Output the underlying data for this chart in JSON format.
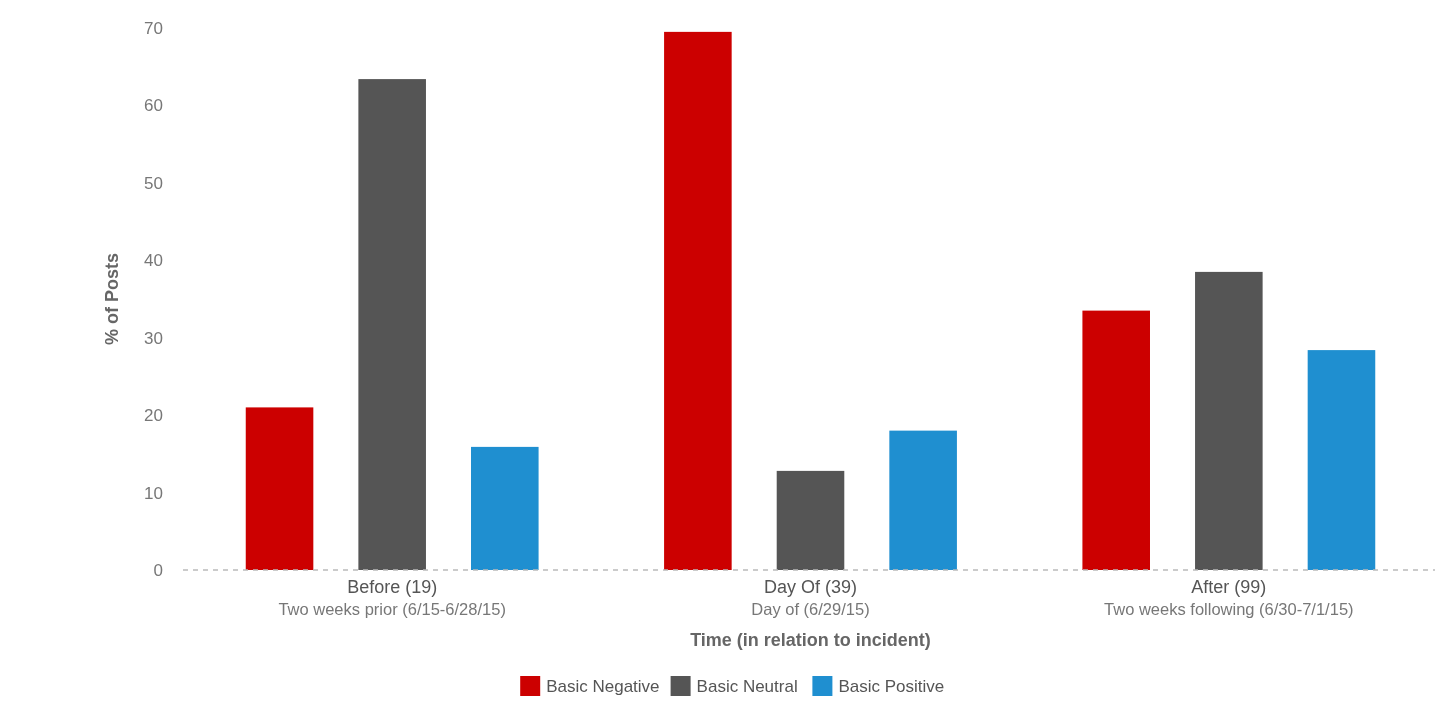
{
  "chart_data": {
    "type": "bar",
    "xlabel": "Time (in relation to incident)",
    "ylabel": "% of Posts",
    "categories": [
      "Before (19)\nTwo weeks prior (6/15-6/28/15)",
      "Day Of (39)\nDay of (6/29/15)",
      "After (99)\nTwo weeks following (6/30-7/1/15)"
    ],
    "series": [
      {
        "name": "Basic Negative",
        "color": "#cc0000",
        "values": [
          21,
          69.5,
          33.5
        ]
      },
      {
        "name": "Basic Neutral",
        "color": "#555555",
        "values": [
          63.4,
          12.8,
          38.5
        ]
      },
      {
        "name": "Basic Positive",
        "color": "#1f8fd0",
        "values": [
          15.9,
          18,
          28.4
        ]
      }
    ],
    "ylim": [
      0,
      70
    ],
    "yticks": [
      0,
      10,
      20,
      30,
      40,
      50,
      60,
      70
    ],
    "legend": "bottom"
  }
}
